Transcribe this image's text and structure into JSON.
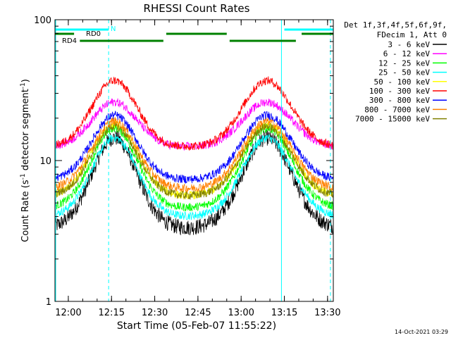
{
  "chart_data": {
    "type": "line",
    "title": "RHESSI Count Rates",
    "xlabel": "Start Time (05-Feb-07 11:55:22)",
    "ylabel_main": "Count Rate (s",
    "ylabel_sup1": "-1",
    "ylabel_mid": " detector segment",
    "ylabel_sup2": "-1",
    "ylabel_end": ")",
    "x_start": "11:55:22",
    "x_end": "13:32",
    "x_ticks": [
      "12:00",
      "12:15",
      "12:30",
      "12:45",
      "13:00",
      "13:15",
      "13:30"
    ],
    "y_scale": "log",
    "ylim": [
      1,
      100
    ],
    "y_ticks": [
      "1",
      "10",
      "100"
    ],
    "legend_header": [
      "Det 1f,3f,4f,5f,6f,9f,",
      "FDecim 1, Att 0"
    ],
    "legend_placement": "right",
    "series": [
      {
        "name": "3 - 6 keV",
        "color": "#000000",
        "min_rate": 3.3,
        "max_rate": 14.5
      },
      {
        "name": "6 - 12 keV",
        "color": "#ff00ff",
        "min_rate": 12.5,
        "max_rate": 26
      },
      {
        "name": "12 - 25 keV",
        "color": "#00ff00",
        "min_rate": 4.6,
        "max_rate": 17
      },
      {
        "name": "25 - 50 keV",
        "color": "#00ffff",
        "min_rate": 4.0,
        "max_rate": 14.5
      },
      {
        "name": "50 - 100 keV",
        "color": "#ffff00",
        "min_rate": 5.6,
        "max_rate": 18
      },
      {
        "name": "100 - 300 keV",
        "color": "#ff0000",
        "min_rate": 12.5,
        "max_rate": 37
      },
      {
        "name": "300 - 800 keV",
        "color": "#0000ff",
        "min_rate": 7.3,
        "max_rate": 21
      },
      {
        "name": "800 - 7000 keV",
        "color": "#ff8000",
        "min_rate": 6.3,
        "max_rate": 19
      },
      {
        "name": "7000 - 15000 keV",
        "color": "#808000",
        "min_rate": 5.6,
        "max_rate": 17.5
      }
    ],
    "peaks": [
      "12:16",
      "13:09"
    ],
    "troughs": [
      "12:41"
    ],
    "flags": {
      "rd0_label": "RD0",
      "rd4_label": "RD4",
      "n_label": "N",
      "rd0_segments": [
        [
          "11:55:22",
          "12:14"
        ],
        [
          "13:15",
          "13:32"
        ]
      ],
      "rd4_segments": [
        [
          "11:55:22",
          "12:02"
        ],
        [
          "12:04",
          "12:33"
        ],
        [
          "12:34",
          "12:55"
        ],
        [
          "12:56",
          "13:19"
        ],
        [
          "13:21",
          "13:32"
        ]
      ]
    },
    "solid_vlines": [
      "11:55:22",
      "13:14"
    ],
    "dashed_vlines": [
      "12:14",
      "13:31"
    ]
  },
  "footer": {
    "timestamp": "14-Oct-2021 03:29"
  }
}
